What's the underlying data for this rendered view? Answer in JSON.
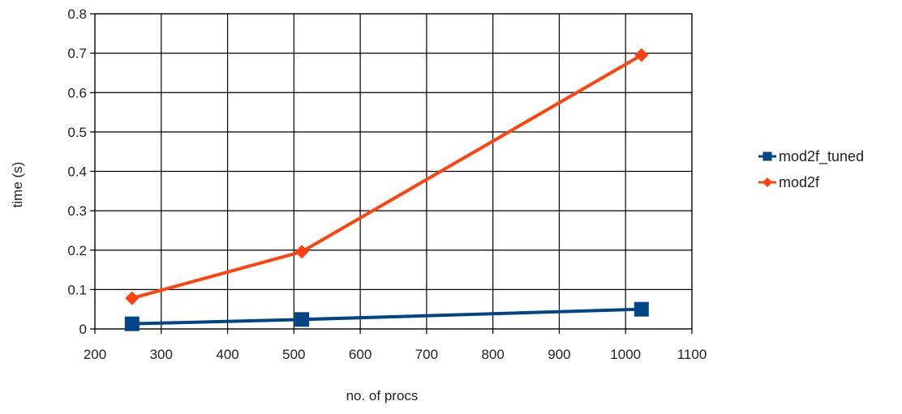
{
  "chart_data": {
    "type": "line",
    "title": "",
    "xlabel": "no. of procs",
    "ylabel": "time (s)",
    "xlim": [
      200,
      1100
    ],
    "ylim": [
      0,
      0.8
    ],
    "xticks": [
      200,
      300,
      400,
      500,
      600,
      700,
      800,
      900,
      1000,
      1100
    ],
    "yticks": [
      0,
      0.1,
      0.2,
      0.3,
      0.4,
      0.5,
      0.6,
      0.7,
      0.8
    ],
    "xtick_labels": [
      "200",
      "300",
      "400",
      "500",
      "600",
      "700",
      "800",
      "900",
      "1000",
      "1100"
    ],
    "ytick_labels": [
      "0",
      "0.1",
      "0.2",
      "0.3",
      "0.4",
      "0.5",
      "0.6",
      "0.7",
      "0.8"
    ],
    "grid": true,
    "legend_position": "right",
    "series": [
      {
        "name": "mod2f_tuned",
        "color": "#004586",
        "marker": "square",
        "x": [
          256,
          512,
          1024
        ],
        "y": [
          0.013,
          0.024,
          0.05
        ]
      },
      {
        "name": "mod2f",
        "color": "#ff420e",
        "marker": "diamond",
        "x": [
          256,
          512,
          1024
        ],
        "y": [
          0.078,
          0.196,
          0.695
        ]
      }
    ]
  }
}
